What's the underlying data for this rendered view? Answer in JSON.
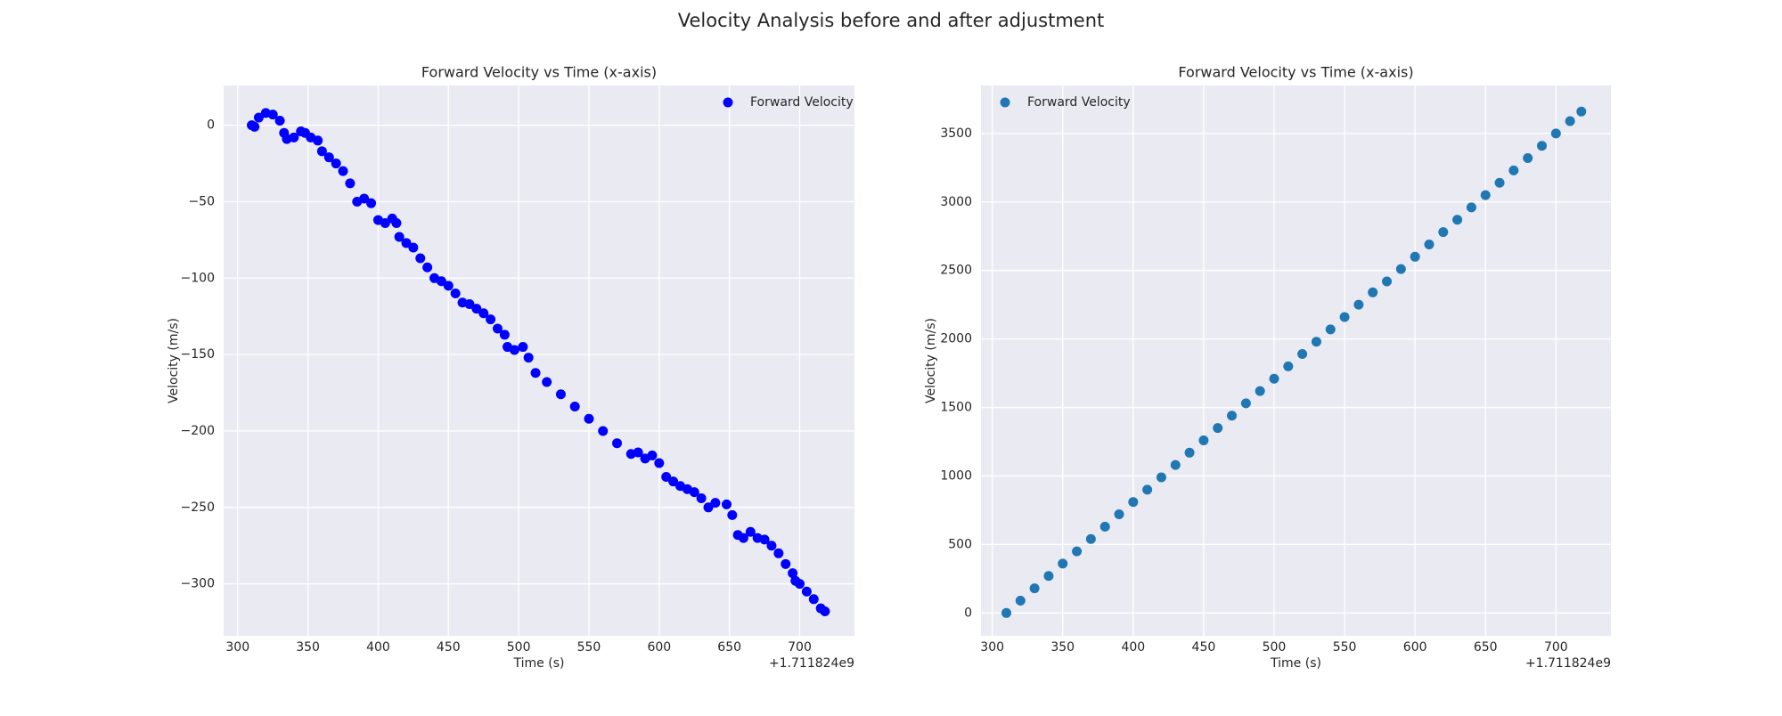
{
  "title": "Velocity Analysis before and after adjustment",
  "chart_data": [
    {
      "type": "scatter",
      "title": "Forward Velocity vs Time (x-axis)",
      "xlabel": "Time (s)",
      "ylabel": "Velocity (m/s)",
      "x_offset_label": "+1.711824e9",
      "xlim": [
        290,
        739
      ],
      "ylim": [
        -334,
        26
      ],
      "xticks": [
        300,
        350,
        400,
        450,
        500,
        550,
        600,
        650,
        700
      ],
      "yticks": [
        {
          "value": -300,
          "label": "−300"
        },
        {
          "value": -250,
          "label": "−250"
        },
        {
          "value": -200,
          "label": "−200"
        },
        {
          "value": -150,
          "label": "−150"
        },
        {
          "value": -100,
          "label": "−100"
        },
        {
          "value": -50,
          "label": "−50"
        },
        0
      ],
      "grid": true,
      "legend": "upper right",
      "series": [
        {
          "name": "Forward Velocity",
          "color": "#0000ff",
          "x": [
            310,
            312,
            315,
            320,
            325,
            330,
            333,
            335,
            340,
            345,
            348,
            352,
            357,
            360,
            365,
            370,
            375,
            380,
            385,
            390,
            395,
            400,
            405,
            410,
            413,
            415,
            420,
            425,
            430,
            435,
            440,
            445,
            450,
            455,
            460,
            465,
            470,
            475,
            480,
            485,
            490,
            492,
            497,
            503,
            507,
            512,
            520,
            530,
            540,
            550,
            560,
            570,
            580,
            585,
            590,
            595,
            600,
            605,
            610,
            615,
            620,
            625,
            630,
            635,
            640,
            648,
            652,
            656,
            660,
            665,
            670,
            675,
            680,
            685,
            690,
            695,
            697,
            700,
            705,
            710,
            715,
            718
          ],
          "values": [
            0,
            -1,
            5,
            8,
            7,
            3,
            -5,
            -9,
            -8,
            -4,
            -5,
            -8,
            -10,
            -17,
            -21,
            -25,
            -30,
            -38,
            -50,
            -48,
            -51,
            -62,
            -64,
            -61,
            -64,
            -73,
            -77,
            -80,
            -87,
            -93,
            -100,
            -102,
            -105,
            -110,
            -116,
            -117,
            -120,
            -123,
            -127,
            -133,
            -137,
            -145,
            -147,
            -145,
            -152,
            -162,
            -168,
            -176,
            -184,
            -192,
            -200,
            -208,
            -215,
            -214,
            -218,
            -216,
            -221,
            -230,
            -233,
            -236,
            -238,
            -240,
            -244,
            -250,
            -247,
            -248,
            -255,
            -268,
            -270,
            -266,
            -270,
            -271,
            -275,
            -280,
            -287,
            -293,
            -298,
            -300,
            -305,
            -310,
            -316,
            -318
          ]
        }
      ]
    },
    {
      "type": "scatter",
      "title": "Forward Velocity vs Time (x-axis)",
      "xlabel": "Time (s)",
      "ylabel": "Velocity (m/s)",
      "x_offset_label": "+1.711824e9",
      "xlim": [
        292,
        739
      ],
      "ylim": [
        -167,
        3850
      ],
      "xticks": [
        300,
        350,
        400,
        450,
        500,
        550,
        600,
        650,
        700
      ],
      "yticks": [
        0,
        500,
        1000,
        1500,
        2000,
        2500,
        3000,
        3500
      ],
      "grid": true,
      "legend": "upper left",
      "series": [
        {
          "name": "Forward Velocity",
          "color": "#1f77b4",
          "x": [
            310,
            320,
            330,
            340,
            350,
            360,
            370,
            380,
            390,
            400,
            410,
            420,
            430,
            440,
            450,
            460,
            470,
            480,
            490,
            500,
            510,
            520,
            530,
            540,
            550,
            560,
            570,
            580,
            590,
            600,
            610,
            620,
            630,
            640,
            650,
            660,
            670,
            680,
            690,
            700,
            710,
            718
          ],
          "values": [
            0,
            90,
            180,
            270,
            360,
            450,
            540,
            630,
            720,
            810,
            900,
            990,
            1080,
            1170,
            1260,
            1350,
            1440,
            1530,
            1620,
            1710,
            1800,
            1890,
            1980,
            2070,
            2160,
            2250,
            2340,
            2420,
            2510,
            2600,
            2690,
            2780,
            2870,
            2960,
            3050,
            3140,
            3230,
            3320,
            3410,
            3500,
            3590,
            3660
          ]
        }
      ]
    }
  ]
}
